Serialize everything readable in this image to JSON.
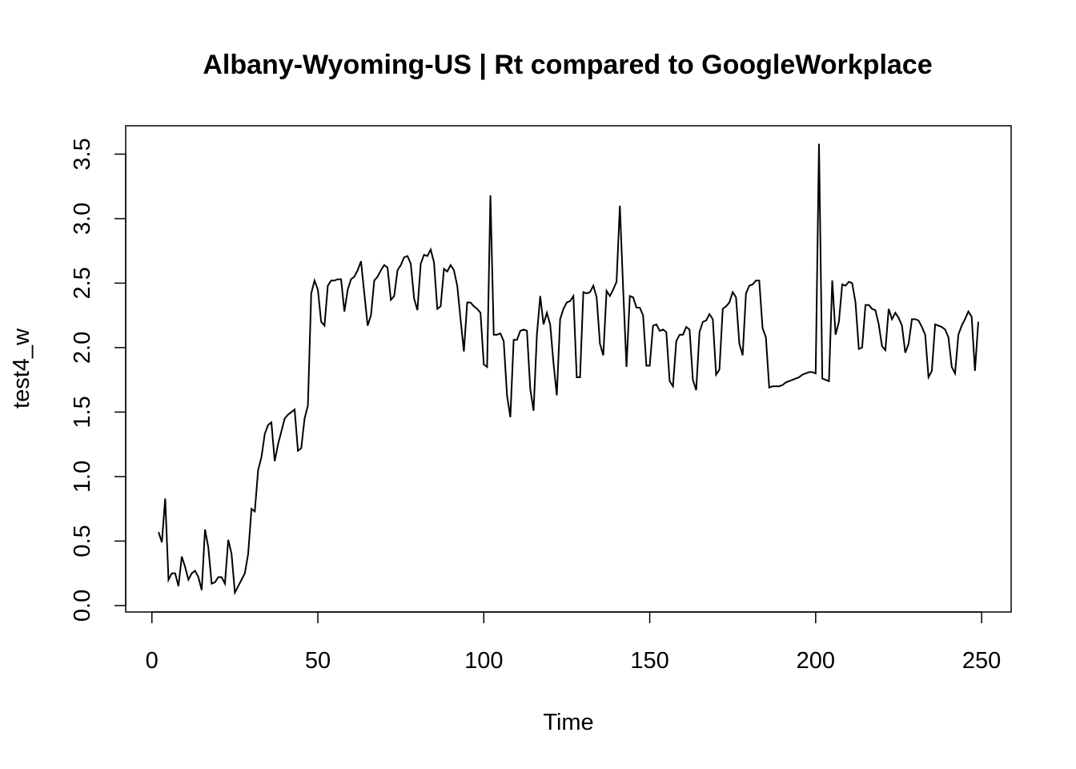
{
  "chart_data": {
    "type": "line",
    "title": "Albany-Wyoming-US | Rt compared to GoogleWorkplace",
    "xlabel": "Time",
    "ylabel": "test4_w",
    "xlim": [
      -7.9,
      258.9
    ],
    "ylim": [
      -0.05,
      3.72
    ],
    "x_ticks": [
      0,
      50,
      100,
      150,
      200,
      250
    ],
    "y_ticks": [
      0.0,
      0.5,
      1.0,
      1.5,
      2.0,
      2.5,
      3.0,
      3.5
    ],
    "x_tick_labels": [
      "0",
      "50",
      "100",
      "150",
      "200",
      "250"
    ],
    "y_tick_labels": [
      "0.0",
      "0.5",
      "1.0",
      "1.5",
      "2.0",
      "2.5",
      "3.0",
      "3.5"
    ],
    "grid": false,
    "legend": "none",
    "line_color": "#000000",
    "x_start": 2,
    "values": [
      0.57,
      0.49,
      0.83,
      0.2,
      0.25,
      0.25,
      0.15,
      0.38,
      0.3,
      0.2,
      0.25,
      0.27,
      0.22,
      0.12,
      0.59,
      0.45,
      0.17,
      0.18,
      0.22,
      0.22,
      0.17,
      0.51,
      0.4,
      0.1,
      0.15,
      0.2,
      0.25,
      0.4,
      0.75,
      0.73,
      1.05,
      1.15,
      1.33,
      1.4,
      1.42,
      1.12,
      1.25,
      1.35,
      1.45,
      1.48,
      1.5,
      1.52,
      1.2,
      1.22,
      1.45,
      1.55,
      2.42,
      2.52,
      2.45,
      2.2,
      2.17,
      2.48,
      2.52,
      2.52,
      2.53,
      2.53,
      2.28,
      2.45,
      2.53,
      2.55,
      2.6,
      2.67,
      2.42,
      2.17,
      2.25,
      2.52,
      2.55,
      2.6,
      2.64,
      2.62,
      2.37,
      2.4,
      2.6,
      2.64,
      2.7,
      2.71,
      2.65,
      2.38,
      2.29,
      2.65,
      2.72,
      2.71,
      2.76,
      2.66,
      2.3,
      2.32,
      2.61,
      2.59,
      2.64,
      2.6,
      2.48,
      2.22,
      1.97,
      2.35,
      2.35,
      2.32,
      2.3,
      2.27,
      1.87,
      1.85,
      3.18,
      2.1,
      2.1,
      2.11,
      2.05,
      1.63,
      1.46,
      2.06,
      2.06,
      2.13,
      2.14,
      2.13,
      1.68,
      1.51,
      2.1,
      2.4,
      2.18,
      2.27,
      2.18,
      1.88,
      1.63,
      2.22,
      2.3,
      2.35,
      2.36,
      2.4,
      1.77,
      1.77,
      2.43,
      2.42,
      2.43,
      2.48,
      2.39,
      2.03,
      1.94,
      2.44,
      2.4,
      2.45,
      2.51,
      3.1,
      2.45,
      1.85,
      2.4,
      2.39,
      2.31,
      2.31,
      2.25,
      1.86,
      1.86,
      2.17,
      2.18,
      2.13,
      2.14,
      2.12,
      1.74,
      1.7,
      2.05,
      2.1,
      2.1,
      2.16,
      2.14,
      1.75,
      1.67,
      2.12,
      2.2,
      2.21,
      2.26,
      2.22,
      1.79,
      1.83,
      2.3,
      2.32,
      2.35,
      2.43,
      2.39,
      2.03,
      1.94,
      2.42,
      2.48,
      2.49,
      2.52,
      2.52,
      2.15,
      2.08,
      1.69,
      1.7,
      1.7,
      1.7,
      1.71,
      1.73,
      1.74,
      1.75,
      1.76,
      1.77,
      1.79,
      1.8,
      1.81,
      1.81,
      1.8,
      3.58,
      1.76,
      1.75,
      1.74,
      2.52,
      2.1,
      2.2,
      2.49,
      2.48,
      2.51,
      2.5,
      2.35,
      1.99,
      2.0,
      2.33,
      2.33,
      2.3,
      2.29,
      2.18,
      2.01,
      1.98,
      2.3,
      2.22,
      2.27,
      2.23,
      2.17,
      1.96,
      2.03,
      2.22,
      2.22,
      2.21,
      2.16,
      2.1,
      1.77,
      1.82,
      2.18,
      2.17,
      2.16,
      2.14,
      2.08,
      1.85,
      1.8,
      2.1,
      2.17,
      2.22,
      2.28,
      2.24,
      1.82,
      2.2
    ]
  }
}
